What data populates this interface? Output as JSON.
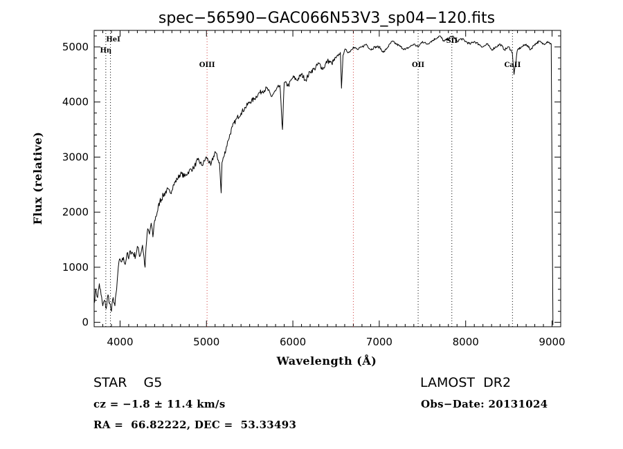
{
  "chart_data": {
    "type": "line",
    "title": "spec−56590−GAC066N53V3_sp04−120.fits",
    "xlabel": "Wavelength (Å)",
    "ylabel": "Flux (relative)",
    "xlim": [
      3700,
      9100
    ],
    "ylim": [
      -80,
      5300
    ],
    "xticks": [
      4000,
      5000,
      6000,
      7000,
      8000,
      9000
    ],
    "yticks": [
      0,
      1000,
      2000,
      3000,
      4000,
      5000
    ],
    "grid": false,
    "series": [
      {
        "x": [
          3700,
          3720,
          3740,
          3760,
          3780,
          3800,
          3820,
          3840,
          3860,
          3880,
          3900,
          3920,
          3940,
          3960,
          3980,
          4000,
          4020,
          4040,
          4060,
          4080,
          4100,
          4120,
          4150,
          4180,
          4200,
          4230,
          4260,
          4290,
          4300,
          4320,
          4340,
          4360,
          4380,
          4400,
          4430,
          4460,
          4500,
          4540,
          4580,
          4620,
          4660,
          4700,
          4750,
          4800,
          4850,
          4900,
          4950,
          5000,
          5050,
          5100,
          5150,
          5170,
          5180,
          5200,
          5250,
          5300,
          5350,
          5400,
          5450,
          5500,
          5550,
          5600,
          5650,
          5700,
          5750,
          5800,
          5850,
          5880,
          5890,
          5900,
          5950,
          6000,
          6050,
          6100,
          6150,
          6200,
          6250,
          6300,
          6350,
          6400,
          6450,
          6500,
          6550,
          6563,
          6580,
          6600,
          6650,
          6700,
          6750,
          6800,
          6850,
          6900,
          6950,
          7000,
          7050,
          7100,
          7150,
          7200,
          7250,
          7300,
          7350,
          7400,
          7450,
          7500,
          7550,
          7600,
          7650,
          7700,
          7750,
          7800,
          7850,
          7900,
          7950,
          8000,
          8050,
          8100,
          8150,
          8200,
          8250,
          8300,
          8350,
          8400,
          8450,
          8500,
          8540,
          8560,
          8600,
          8650,
          8700,
          8750,
          8800,
          8850,
          8900,
          8950,
          8990,
          9010
        ],
        "y": [
          350,
          600,
          450,
          700,
          500,
          300,
          400,
          250,
          500,
          350,
          200,
          450,
          300,
          600,
          1000,
          1150,
          1100,
          1180,
          1050,
          1250,
          1150,
          1300,
          1250,
          1200,
          1380,
          1200,
          1400,
          1000,
          1350,
          1700,
          1600,
          1800,
          1550,
          1850,
          2000,
          2200,
          2300,
          2400,
          2350,
          2500,
          2600,
          2700,
          2650,
          2750,
          2800,
          2950,
          2850,
          3000,
          2850,
          3100,
          2900,
          2350,
          2900,
          3000,
          3300,
          3550,
          3700,
          3800,
          3900,
          4000,
          4050,
          4150,
          4200,
          4250,
          4100,
          4200,
          4300,
          3500,
          3950,
          4350,
          4300,
          4450,
          4400,
          4500,
          4400,
          4550,
          4600,
          4700,
          4600,
          4750,
          4700,
          4800,
          4900,
          4250,
          4850,
          4950,
          4900,
          5000,
          4950,
          5000,
          5050,
          4950,
          5000,
          5000,
          4900,
          5000,
          5100,
          5050,
          5000,
          4950,
          5000,
          5050,
          5000,
          5100,
          5050,
          5100,
          5150,
          5200,
          5100,
          5150,
          5200,
          5100,
          5150,
          5100,
          5050,
          5100,
          5050,
          5000,
          5050,
          4950,
          5000,
          5050,
          4950,
          5000,
          4900,
          4500,
          4950,
          5000,
          5050,
          4950,
          5050,
          5100,
          5050,
          5100,
          5050,
          -50
        ]
      }
    ],
    "line_markers": [
      {
        "label": "HeI",
        "x": 3889,
        "style": "dotted",
        "color": "#000000"
      },
      {
        "label": "Hη",
        "x": 3835,
        "style": "dotted",
        "color": "#000000"
      },
      {
        "label": "OIII",
        "x": 5007,
        "style": "dotted",
        "color": "#d04040"
      },
      {
        "label": "OII",
        "x": 7450,
        "style": "dotted",
        "color": "#000000"
      },
      {
        "label": "SII",
        "x": 7840,
        "style": "dotted",
        "color": "#000000"
      },
      {
        "label": "CaII",
        "x": 8542,
        "style": "dotted",
        "color": "#000000"
      },
      {
        "label": "",
        "x": 6700,
        "style": "dotted",
        "color": "#d04040"
      }
    ]
  },
  "info": {
    "object_class": "STAR    G5",
    "survey": "LAMOST  DR2",
    "redshift": "cz = −1.8 ± 11.4 km/s",
    "obs_date": "Obs−Date: 20131024",
    "coords": "RA =  66.82222, DEC =  53.33493"
  }
}
